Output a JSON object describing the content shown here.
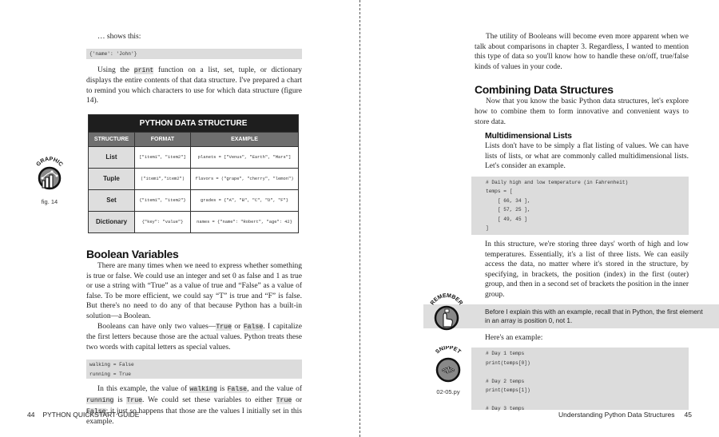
{
  "left_page": {
    "intro": "… shows this:",
    "code1": "{'name': 'John'}",
    "para1": {
      "a": "Using the ",
      "code": "print",
      "b": " function on a list, set, tuple, or dictionary displays the entire contents of that data structure. I've prepared a chart to remind you which characters to use for which data structure (figure 14)."
    },
    "table": {
      "title": "PYTHON DATA STRUCTURE",
      "headers": [
        "STRUCTURE",
        "FORMAT",
        "EXAMPLE"
      ],
      "rows": [
        {
          "structure": "List",
          "format": "[\"item1\", \"item2\"]",
          "example": "planets = [\"Venus\", \"Earth\", \"Mars\"]"
        },
        {
          "structure": "Tuple",
          "format": "(\"item1\",\"item2\")",
          "example": "flavors = (\"grape\", \"cherry\", \"lemon\")"
        },
        {
          "structure": "Set",
          "format": "{\"item1\", \"item2\"}",
          "example": "grades = {\"A\", \"B\", \"C\", \"D\", \"F\"}"
        },
        {
          "structure": "Dictionary",
          "format": "{\"key\": \"value\"}",
          "example": "names = {\"name\": \"Robert\", \"age\": 42}"
        }
      ]
    },
    "graphic_icon": {
      "label": "GRAPHIC",
      "caption": "fig. 14",
      "icon": "bar-chart-icon"
    },
    "heading": "Boolean Variables",
    "para2": "There are many times when we need to express whether something is true or false. We could use an integer and set 0 as false and 1 as true or use a string with “True” as a value of true and “False” as a value of false. To be more efficient, we could say “T” is true and “F” is false. But there's no need to do any of that because Python has a built-in solution—a Boolean.",
    "para3": {
      "a": "Booleans can have only two values—",
      "c1": "True",
      "b": " or ",
      "c2": "False",
      "d": ". I capitalize the first letters because those are the actual values. Python treats these two words with capital letters as special values."
    },
    "code2": "walking = False\nrunning = True",
    "para4": {
      "a": "In this example, the value of ",
      "c1": "walking",
      "b": " is ",
      "c2": "False",
      "d": ", and the value of ",
      "c3": "running",
      "e": " is ",
      "c4": "True",
      "f": ". We could set these variables to either ",
      "c5": "True",
      "g": " or ",
      "c6": "False",
      "h": "; it just so happens that those are the values I initially set in this example."
    },
    "footer": {
      "page": "44",
      "title": "PYTHON QUICKSTART GUIDE"
    }
  },
  "right_page": {
    "para1": "The utility of Booleans will become even more apparent when we talk about comparisons in chapter 3. Regardless, I wanted to mention this type of data so you'll know how to handle these on/off, true/false kinds of values in your code.",
    "heading": "Combining Data Structures",
    "para2": "Now that you know the basic Python data structures, let's explore how to combine them to form innovative and convenient ways to store data.",
    "subheading": "Multidimensional Lists",
    "para3": "Lists don't have to be simply a flat listing of values. We can have lists of lists, or what are commonly called multidimensional lists. Let's consider an example.",
    "code1": "# Daily high and low temperature (in Fahrenheit)\ntemps = [\n    [ 66, 34 ],\n    [ 57, 25 ],\n    [ 49, 45 ]\n]",
    "para4": "In this structure, we're storing three days' worth of high and low temperatures. Essentially, it's a list of three lists. We can easily access the data, no matter where it's stored in the structure, by specifying, in brackets, the position (index) in the first (outer) group, and then in a second set of brackets the position in the inner group.",
    "remember": {
      "label": "REMEMBER",
      "icon": "hand-pointer-icon",
      "text": "Before I explain this with an example, recall that in Python, the first element in an array is position 0, not 1."
    },
    "para5": "Here's an example:",
    "snippet": {
      "label": "SNIPPET",
      "icon": "code-brackets-icon",
      "file": "02-05.py"
    },
    "code2": "# Day 1 temps\nprint(temps[0])\n\n# Day 2 temps\nprint(temps[1])\n\n# Day 3 temps",
    "footer": {
      "title": "Understanding Python Data Structures",
      "page": "45"
    }
  }
}
